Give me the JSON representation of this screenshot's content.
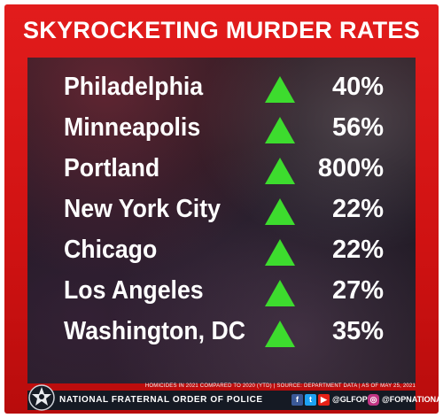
{
  "title": "SKYROCKETING MURDER RATES",
  "rows": [
    {
      "city": "Philadelphia",
      "change": "40%",
      "direction": "up"
    },
    {
      "city": "Minneapolis",
      "change": "56%",
      "direction": "up"
    },
    {
      "city": "Portland",
      "change": "800%",
      "direction": "up"
    },
    {
      "city": "New York City",
      "change": "22%",
      "direction": "up"
    },
    {
      "city": "Chicago",
      "change": "22%",
      "direction": "up"
    },
    {
      "city": "Los Angeles",
      "change": "27%",
      "direction": "up"
    },
    {
      "city": "Washington, DC",
      "change": "35%",
      "direction": "up"
    }
  ],
  "footnote": "HOMICIDES IN 2021 COMPARED TO 2020 (YTD)  |  SOURCE: DEPARTMENT DATA  |  AS OF MAY 25, 2021",
  "footer": {
    "organization": "NATIONAL FRATERNAL ORDER OF POLICE",
    "handle_1": "@GLFOP",
    "handle_2": "@FOPNATIONAL"
  },
  "colors": {
    "frame_red": "#d81818",
    "arrow_green": "#3ddc2e",
    "panel_dark": "#1e1820",
    "footer_dark": "#151a24"
  },
  "icons": {
    "arrow": "up-triangle-icon",
    "badge": "fop-star-badge-icon",
    "social": [
      "facebook-icon",
      "twitter-icon",
      "youtube-icon",
      "instagram-icon"
    ]
  }
}
